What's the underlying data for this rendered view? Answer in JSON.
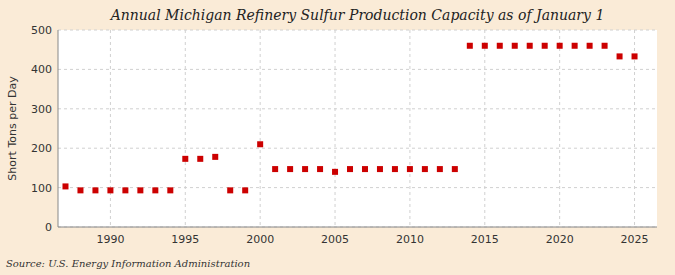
{
  "chart_data": {
    "type": "scatter",
    "title": "Annual Michigan Refinery Sulfur Production Capacity as of January 1",
    "y_label": "Short Tons per Day",
    "source": "Source: U.S. Energy Information Administration",
    "x": [
      1987,
      1988,
      1989,
      1990,
      1991,
      1992,
      1993,
      1994,
      1995,
      1996,
      1997,
      1998,
      1999,
      2000,
      2001,
      2002,
      2003,
      2004,
      2005,
      2006,
      2007,
      2008,
      2009,
      2010,
      2011,
      2012,
      2013,
      2014,
      2015,
      2016,
      2017,
      2018,
      2019,
      2020,
      2021,
      2022,
      2023,
      2024,
      2025
    ],
    "values": [
      103,
      93,
      93,
      93,
      93,
      93,
      93,
      93,
      173,
      173,
      178,
      93,
      93,
      210,
      147,
      147,
      147,
      147,
      140,
      147,
      147,
      147,
      147,
      147,
      147,
      147,
      147,
      460,
      460,
      460,
      460,
      460,
      460,
      460,
      460,
      460,
      460,
      433,
      433
    ],
    "color": "#cc0000",
    "marker": "square",
    "xlim": [
      1986.5,
      2026.5
    ],
    "xticks": [
      1990,
      1995,
      2000,
      2005,
      2010,
      2015,
      2020,
      2025
    ],
    "ylim": [
      0,
      500
    ],
    "yticks": [
      0,
      100,
      200,
      300,
      400,
      500
    ],
    "grid": true
  }
}
